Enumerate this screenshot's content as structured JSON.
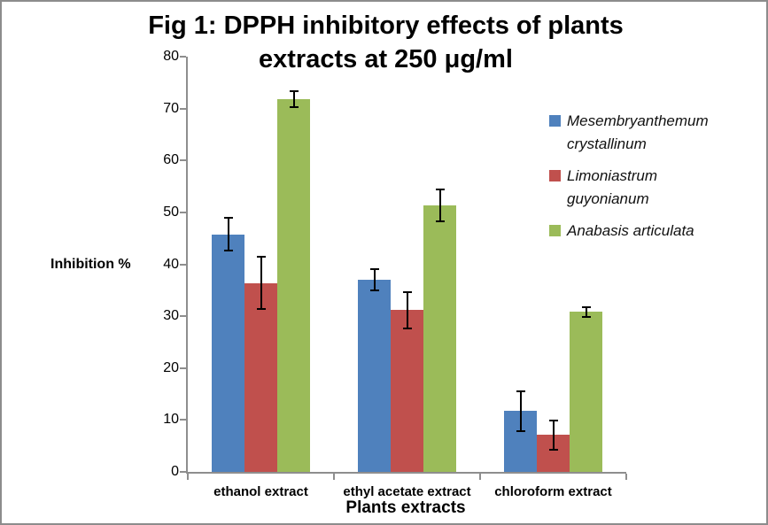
{
  "title": {
    "line1": "Fig 1: DPPH inhibitory effects of plants",
    "line2": "extracts at 250 μg/ml"
  },
  "chart_data": {
    "type": "bar",
    "title": "Fig 1: DPPH inhibitory effects of plants extracts at 250 μg/ml",
    "xlabel": "Plants extracts",
    "ylabel": "Inhibition %",
    "ylim": [
      0,
      80
    ],
    "yticks": [
      0,
      10,
      20,
      30,
      40,
      50,
      60,
      70,
      80
    ],
    "grid": false,
    "legend_position": "right",
    "axis_color": "#8e8e8e",
    "error_bar_color": "#000000",
    "categories": [
      "ethanol extract",
      "ethyl acetate extract",
      "chloroform extract"
    ],
    "series": [
      {
        "name": "Mesembryanthemum crystallinum",
        "color": "#4F81BD",
        "values": [
          45.8,
          37.0,
          11.7
        ],
        "error_bars": [
          3.2,
          2.0,
          3.8
        ]
      },
      {
        "name": "Limoniastrum guyonianum",
        "color": "#C0504D",
        "values": [
          36.4,
          31.2,
          7.1
        ],
        "error_bars": [
          5.0,
          3.5,
          2.8
        ]
      },
      {
        "name": "Anabasis articulata",
        "color": "#9BBB59",
        "values": [
          71.8,
          51.3,
          30.8
        ],
        "error_bars": [
          1.6,
          3.1,
          0.9
        ]
      }
    ]
  },
  "colors": {
    "background": "#ffffff",
    "frame_border": "#8c8c8c",
    "text": "#000000"
  }
}
